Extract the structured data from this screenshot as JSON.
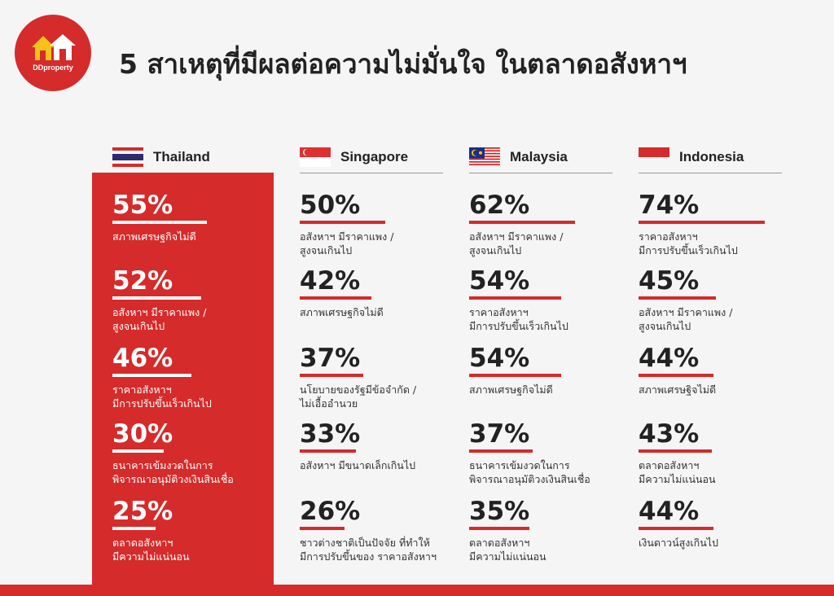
{
  "brand": {
    "logo_text": "DDproperty"
  },
  "title": "5 สาเหตุที่มีผลต่อความไม่มั่นใจ ในตลาดอสังหาฯ",
  "colors": {
    "accent": "#d52b2b",
    "background": "#f5f5f5",
    "text": "#222222"
  },
  "chart_data": [
    {
      "type": "bar",
      "country": "Thailand",
      "flag": "thailand-flag",
      "categories": [
        "สภาพเศรษฐกิจไม่ดี",
        "อสังหาฯ มีราคาแพง /\nสูงจนเกินไป",
        "ราคาอสังหาฯ\nมีการปรับขึ้นเร็วเกินไป",
        "ธนาคารเข้มงวดในการ\nพิจารณาอนุมัติวงเงินสินเชื่อ",
        "ตลาดอสังหาฯ\nมีความไม่แน่นอน"
      ],
      "values": [
        55,
        52,
        46,
        30,
        25
      ],
      "labels": [
        "55%",
        "52%",
        "46%",
        "30%",
        "25%"
      ],
      "unit": "%"
    },
    {
      "type": "bar",
      "country": "Singapore",
      "flag": "singapore-flag",
      "categories": [
        "อสังหาฯ มีราคาแพง /\nสูงจนเกินไป",
        "สภาพเศรษฐกิจไม่ดี",
        "นโยบายของรัฐมีข้อจำกัด /\nไม่เอื้ออำนวย",
        "อสังหาฯ มีขนาดเล็กเกินไป",
        "ชาวต่างชาติเป็นปัจจัย ที่ทำให้\nมีการปรับขึ้นของ ราคาอสังหาฯ"
      ],
      "values": [
        50,
        42,
        37,
        33,
        26
      ],
      "labels": [
        "50%",
        "42%",
        "37%",
        "33%",
        "26%"
      ],
      "unit": "%"
    },
    {
      "type": "bar",
      "country": "Malaysia",
      "flag": "malaysia-flag",
      "categories": [
        "อสังหาฯ มีราคาแพง /\nสูงจนเกินไป",
        "ราคาอสังหาฯ\nมีการปรับขึ้นเร็วเกินไป",
        "สภาพเศรษฐกิจไม่ดี",
        "ธนาคารเข้มงวดในการ\nพิจารณาอนุมัติวงเงินสินเชื่อ",
        "ตลาดอสังหาฯ\nมีความไม่แน่นอน"
      ],
      "values": [
        62,
        54,
        54,
        37,
        35
      ],
      "labels": [
        "62%",
        "54%",
        "54%",
        "37%",
        "35%"
      ],
      "unit": "%"
    },
    {
      "type": "bar",
      "country": "Indonesia",
      "flag": "indonesia-flag",
      "categories": [
        "ราคาอสังหาฯ\nมีการปรับขึ้นเร็วเกินไป",
        "อสังหาฯ มีราคาแพง /\nสูงจนเกินไป",
        "สภาพเศรษฐิจไม่ดี",
        "ตลาดอสังหาฯ\nมีความไม่แน่นอน",
        "เงินดาวน์สูงเกินไป"
      ],
      "values": [
        74,
        45,
        44,
        43,
        44
      ],
      "labels": [
        "74%",
        "45%",
        "44%",
        "43%",
        "44%"
      ],
      "unit": "%"
    }
  ]
}
